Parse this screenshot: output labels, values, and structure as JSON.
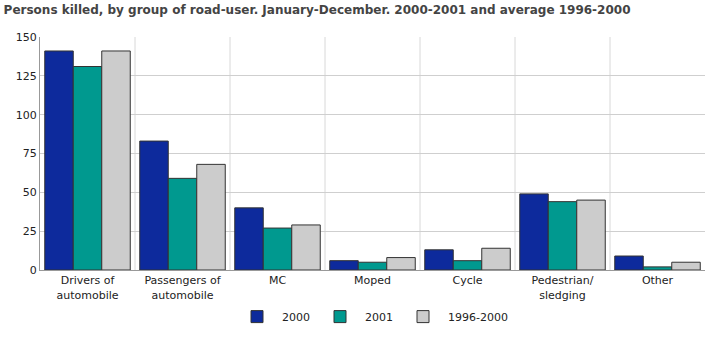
{
  "chart_data": {
    "type": "bar",
    "title": "Persons killed, by group of road-user. January-December. 2000-2001 and average 1996-2000",
    "categories": [
      "Drivers of\nautomobile",
      "Passengers of\nautomobile",
      "MC",
      "Moped",
      "Cycle",
      "Pedestrian/\nsledging",
      "Other"
    ],
    "series": [
      {
        "name": "2000",
        "color": "#0d2a9c",
        "values": [
          141,
          83,
          40,
          6,
          13,
          49,
          9
        ]
      },
      {
        "name": "2001",
        "color": "#00998f",
        "values": [
          131,
          59,
          27,
          5,
          6,
          44,
          2
        ]
      },
      {
        "name": "1996-2000",
        "color": "#cccccc",
        "values": [
          141,
          68,
          29,
          8,
          14,
          45,
          5
        ]
      }
    ],
    "ylim": [
      0,
      150
    ],
    "yticks": [
      0,
      25,
      50,
      75,
      100,
      125,
      150
    ],
    "grid": true,
    "legend": "bottom"
  }
}
